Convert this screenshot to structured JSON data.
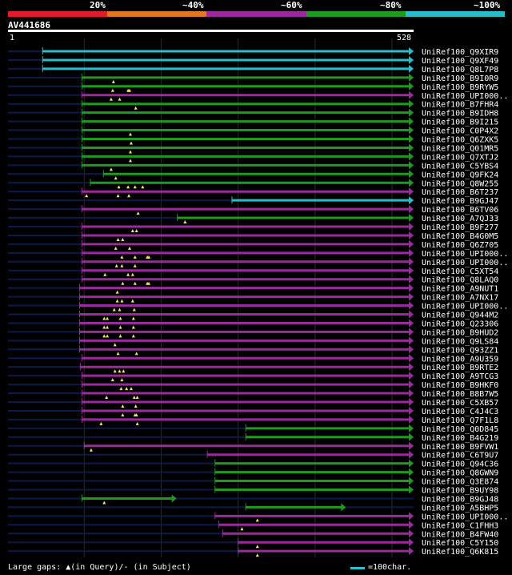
{
  "legend": {
    "colors": [
      "#e41b2c",
      "#e1761e",
      "#9b2a9c",
      "#1e9a1e",
      "#27bdc9"
    ],
    "labels": [
      "20%",
      "~40%",
      "~60%",
      "~80%",
      "~100%"
    ]
  },
  "query": {
    "name": "AV441686",
    "start": "1",
    "end": "528",
    "length": 528
  },
  "footer": {
    "gaps_text": "Large gaps: ▲(in Query)/- (in Subject)",
    "scale_text": "=100char."
  },
  "chart_data": {
    "type": "alignment-overview",
    "query_length": 528,
    "hits": [
      {
        "name": "UniRef100_Q9XIR9",
        "color": "cyan",
        "start": 46,
        "end": 528,
        "gaps": []
      },
      {
        "name": "UniRef100_Q9XF49",
        "color": "cyan",
        "start": 46,
        "end": 528,
        "gaps": []
      },
      {
        "name": "UniRef100_Q8L7P8",
        "color": "cyan",
        "start": 46,
        "end": 528,
        "gaps": []
      },
      {
        "name": "UniRef100_B9I0R9",
        "color": "green",
        "start": 97,
        "end": 528,
        "gaps": [
          138
        ]
      },
      {
        "name": "UniRef100_B9RYW5",
        "color": "green",
        "start": 97,
        "end": 528,
        "gaps": [
          137,
          157,
          159
        ]
      },
      {
        "name": "UniRef100_UPI000..",
        "color": "purple",
        "start": 97,
        "end": 528,
        "gaps": [
          135,
          146
        ]
      },
      {
        "name": "UniRef100_B7FHR4",
        "color": "green",
        "start": 97,
        "end": 528,
        "gaps": [
          167
        ]
      },
      {
        "name": "UniRef100_B9IDH8",
        "color": "green",
        "start": 97,
        "end": 528,
        "gaps": []
      },
      {
        "name": "UniRef100_B9I215",
        "color": "green",
        "start": 97,
        "end": 528,
        "gaps": []
      },
      {
        "name": "UniRef100_C0P4X2",
        "color": "green",
        "start": 97,
        "end": 528,
        "gaps": [
          160
        ]
      },
      {
        "name": "UniRef100_Q6ZXK5",
        "color": "green",
        "start": 97,
        "end": 528,
        "gaps": [
          161
        ]
      },
      {
        "name": "UniRef100_Q01MR5",
        "color": "green",
        "start": 97,
        "end": 528,
        "gaps": [
          160
        ]
      },
      {
        "name": "UniRef100_Q7XTJ2",
        "color": "green",
        "start": 97,
        "end": 528,
        "gaps": [
          160
        ]
      },
      {
        "name": "UniRef100_C5YBS4",
        "color": "green",
        "start": 97,
        "end": 528,
        "gaps": [
          135
        ]
      },
      {
        "name": "UniRef100_Q9FK24",
        "color": "green",
        "start": 125,
        "end": 528,
        "gaps": [
          141
        ]
      },
      {
        "name": "UniRef100_Q8W255",
        "color": "green",
        "start": 108,
        "end": 528,
        "gaps": [
          145,
          157,
          166,
          176
        ]
      },
      {
        "name": "UniRef100_B6T237",
        "color": "purple",
        "start": 97,
        "end": 528,
        "gaps": [
          103,
          144,
          158
        ]
      },
      {
        "name": "UniRef100_B9GJ47",
        "color": "cyan",
        "start": 292,
        "end": 528,
        "gaps": []
      },
      {
        "name": "UniRef100_B6TV06",
        "color": "purple",
        "start": 97,
        "end": 528,
        "gaps": [
          170
        ]
      },
      {
        "name": "UniRef100_A7QJ33",
        "color": "green",
        "start": 221,
        "end": 528,
        "gaps": [
          231
        ]
      },
      {
        "name": "UniRef100_B9F277",
        "color": "purple",
        "start": 97,
        "end": 528,
        "gaps": [
          163,
          168
        ]
      },
      {
        "name": "UniRef100_B4G0M5",
        "color": "purple",
        "start": 97,
        "end": 528,
        "gaps": [
          144,
          150
        ]
      },
      {
        "name": "UniRef100_Q6Z705",
        "color": "purple",
        "start": 97,
        "end": 528,
        "gaps": [
          141,
          159
        ]
      },
      {
        "name": "UniRef100_UPI000..",
        "color": "purple",
        "start": 97,
        "end": 528,
        "gaps": [
          149,
          166,
          182,
          184
        ]
      },
      {
        "name": "UniRef100_UPI000..",
        "color": "purple",
        "start": 97,
        "end": 528,
        "gaps": [
          142,
          149,
          166
        ]
      },
      {
        "name": "UniRef100_C5XT54",
        "color": "purple",
        "start": 97,
        "end": 528,
        "gaps": [
          127,
          157,
          163
        ]
      },
      {
        "name": "UniRef100_Q8LAQ0",
        "color": "purple",
        "start": 97,
        "end": 528,
        "gaps": [
          150,
          166,
          182,
          184
        ]
      },
      {
        "name": "UniRef100_A9NUT1",
        "color": "purple",
        "start": 94,
        "end": 528,
        "gaps": [
          143
        ]
      },
      {
        "name": "UniRef100_A7NX17",
        "color": "purple",
        "start": 94,
        "end": 528,
        "gaps": [
          143,
          149,
          163
        ]
      },
      {
        "name": "UniRef100_UPI000..",
        "color": "purple",
        "start": 94,
        "end": 528,
        "gaps": [
          139,
          146,
          165
        ]
      },
      {
        "name": "UniRef100_Q944M2",
        "color": "purple",
        "start": 94,
        "end": 528,
        "gaps": [
          126,
          130,
          147,
          164
        ]
      },
      {
        "name": "UniRef100_Q23306",
        "color": "purple",
        "start": 94,
        "end": 528,
        "gaps": [
          126,
          130,
          147,
          164
        ]
      },
      {
        "name": "UniRef100_B9HUD2",
        "color": "purple",
        "start": 94,
        "end": 528,
        "gaps": [
          126,
          130,
          147,
          164
        ]
      },
      {
        "name": "UniRef100_Q9LS84",
        "color": "purple",
        "start": 94,
        "end": 528,
        "gaps": [
          140
        ]
      },
      {
        "name": "UniRef100_Q93ZZ1",
        "color": "purple",
        "start": 94,
        "end": 528,
        "gaps": [
          144,
          168
        ]
      },
      {
        "name": "UniRef100_A9U359",
        "color": "purple",
        "start": 97,
        "end": 528,
        "gaps": []
      },
      {
        "name": "UniRef100_B9RTE2",
        "color": "purple",
        "start": 95,
        "end": 528,
        "gaps": [
          140,
          146,
          151
        ]
      },
      {
        "name": "UniRef100_A9TCG3",
        "color": "purple",
        "start": 97,
        "end": 528,
        "gaps": [
          137,
          149
        ]
      },
      {
        "name": "UniRef100_B9HKF0",
        "color": "purple",
        "start": 97,
        "end": 528,
        "gaps": [
          148,
          155,
          161
        ]
      },
      {
        "name": "UniRef100_B8B7W5",
        "color": "purple",
        "start": 97,
        "end": 528,
        "gaps": [
          129,
          165,
          169
        ]
      },
      {
        "name": "UniRef100_C5XB57",
        "color": "purple",
        "start": 97,
        "end": 528,
        "gaps": [
          150,
          167
        ]
      },
      {
        "name": "UniRef100_C4J4C3",
        "color": "purple",
        "start": 97,
        "end": 528,
        "gaps": [
          150,
          166,
          168
        ]
      },
      {
        "name": "UniRef100_Q7F1L8",
        "color": "purple",
        "start": 97,
        "end": 528,
        "gaps": [
          122,
          169
        ]
      },
      {
        "name": "UniRef100_Q0D845",
        "color": "green",
        "start": 310,
        "end": 528,
        "gaps": []
      },
      {
        "name": "UniRef100_B4G219",
        "color": "green",
        "start": 310,
        "end": 528,
        "gaps": []
      },
      {
        "name": "UniRef100_B9FVW1",
        "color": "purple",
        "start": 100,
        "end": 528,
        "gaps": [
          109
        ]
      },
      {
        "name": "UniRef100_C6T9U7",
        "color": "purple",
        "start": 260,
        "end": 528,
        "gaps": []
      },
      {
        "name": "UniRef100_Q94C36",
        "color": "green",
        "start": 270,
        "end": 528,
        "gaps": []
      },
      {
        "name": "UniRef100_Q8GWN9",
        "color": "green",
        "start": 270,
        "end": 528,
        "gaps": []
      },
      {
        "name": "UniRef100_Q3E874",
        "color": "green",
        "start": 270,
        "end": 528,
        "gaps": []
      },
      {
        "name": "UniRef100_B9UY98",
        "color": "green",
        "start": 270,
        "end": 528,
        "gaps": []
      },
      {
        "name": "UniRef100_B9GJ48",
        "color": "green",
        "start": 97,
        "end": 220,
        "gaps": [
          126
        ]
      },
      {
        "name": "UniRef100_A5BHP5",
        "color": "green",
        "start": 310,
        "end": 440,
        "gaps": []
      },
      {
        "name": "UniRef100_UPI000..",
        "color": "purple",
        "start": 270,
        "end": 528,
        "gaps": [
          325
        ]
      },
      {
        "name": "UniRef100_C1FHH3",
        "color": "purple",
        "start": 275,
        "end": 528,
        "gaps": [
          305
        ]
      },
      {
        "name": "UniRef100_B4FW40",
        "color": "purple",
        "start": 280,
        "end": 528,
        "gaps": []
      },
      {
        "name": "UniRef100_C5Y150",
        "color": "purple",
        "start": 300,
        "end": 528,
        "gaps": [
          325
        ]
      },
      {
        "name": "UniRef100_Q6K815",
        "color": "purple",
        "start": 300,
        "end": 528,
        "gaps": [
          325
        ]
      }
    ]
  }
}
